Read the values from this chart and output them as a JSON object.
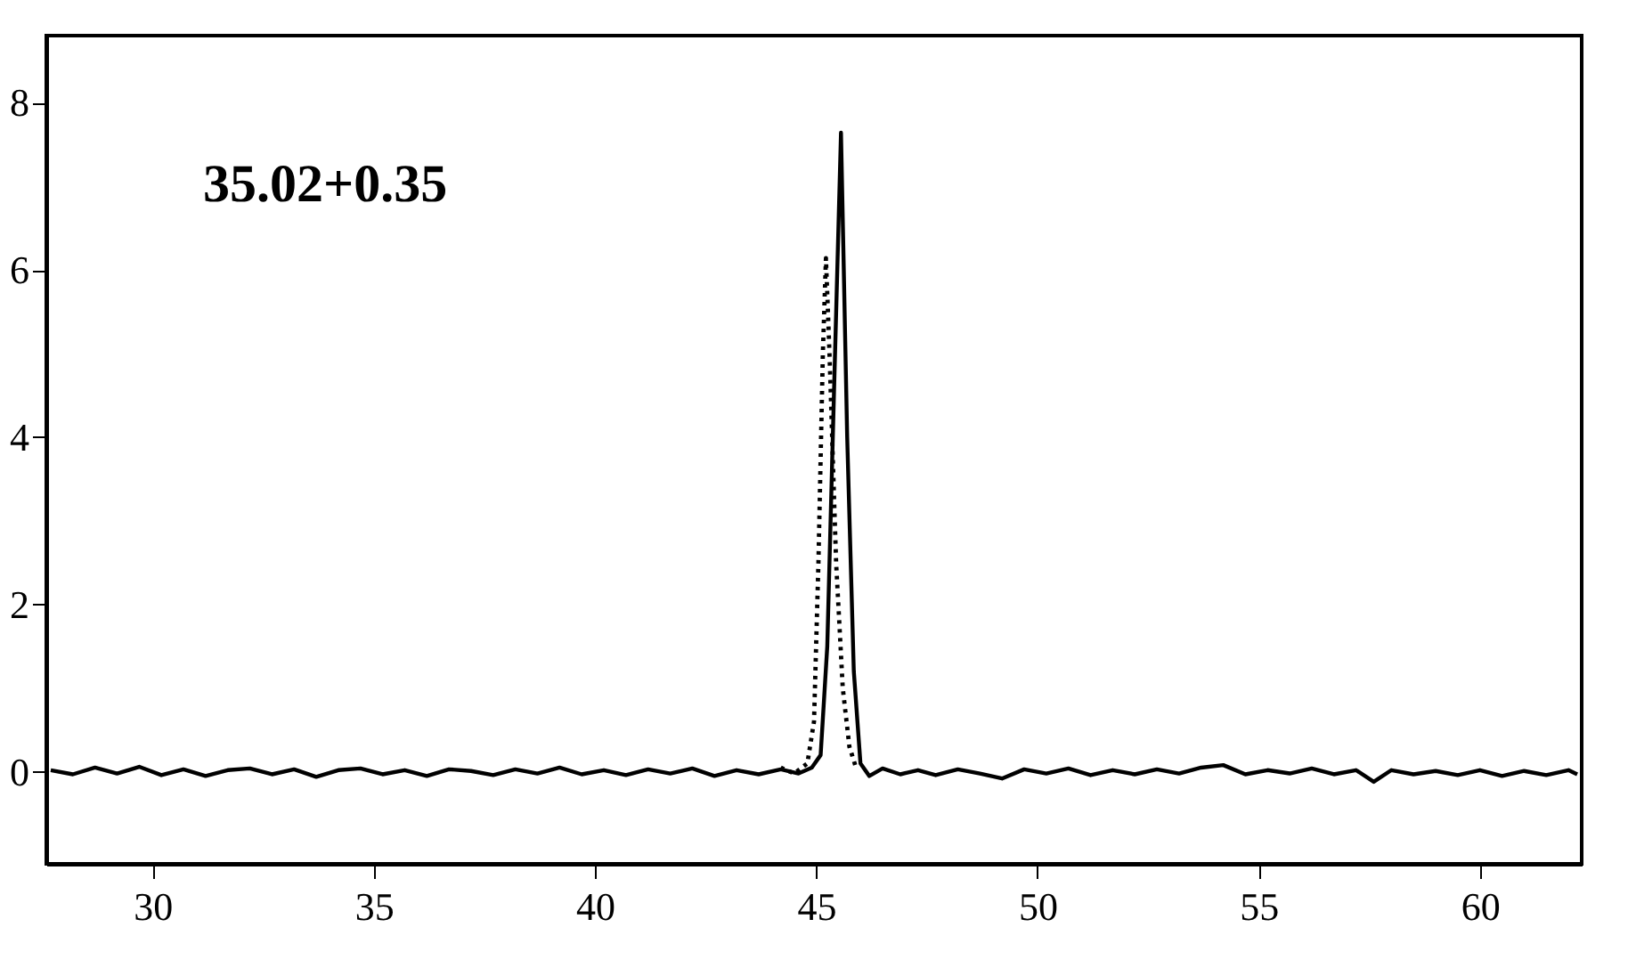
{
  "chart_data": {
    "type": "line",
    "xlim": [
      27.6,
      62.3
    ],
    "ylim": [
      -1.1,
      8.8
    ],
    "xticks": [
      30,
      35,
      40,
      45,
      50,
      55,
      60
    ],
    "yticks": [
      0,
      2,
      4,
      6,
      8
    ],
    "grid": false,
    "marker": "none",
    "annotations": [
      "35.02+0.35"
    ],
    "series": [
      {
        "color": "#000000",
        "line_style": "solid",
        "x": [
          27.7,
          28.2,
          28.7,
          29.2,
          29.7,
          30.2,
          30.7,
          31.2,
          31.7,
          32.2,
          32.7,
          33.2,
          33.7,
          34.2,
          34.7,
          35.2,
          35.7,
          36.2,
          36.7,
          37.2,
          37.7,
          38.2,
          38.7,
          39.2,
          39.7,
          40.2,
          40.7,
          41.2,
          41.7,
          42.2,
          42.7,
          43.2,
          43.7,
          44.2,
          44.6,
          44.9,
          45.1,
          45.25,
          45.4,
          45.56,
          45.7,
          45.85,
          46.0,
          46.2,
          46.5,
          46.9,
          47.3,
          47.7,
          48.2,
          48.7,
          49.2,
          49.7,
          50.2,
          50.7,
          51.2,
          51.7,
          52.2,
          52.7,
          53.2,
          53.7,
          54.2,
          54.7,
          55.2,
          55.7,
          56.2,
          56.7,
          57.2,
          57.6,
          58.0,
          58.5,
          59.0,
          59.5,
          60.0,
          60.5,
          61.0,
          61.5,
          62.0,
          62.2
        ],
        "values": [
          0.02,
          -0.03,
          0.05,
          -0.02,
          0.06,
          -0.04,
          0.03,
          -0.05,
          0.02,
          0.04,
          -0.03,
          0.03,
          -0.06,
          0.02,
          0.04,
          -0.03,
          0.02,
          -0.05,
          0.03,
          0.01,
          -0.04,
          0.03,
          -0.02,
          0.05,
          -0.03,
          0.02,
          -0.04,
          0.03,
          -0.02,
          0.04,
          -0.05,
          0.02,
          -0.03,
          0.03,
          -0.02,
          0.05,
          0.2,
          1.5,
          4.5,
          7.64,
          4.0,
          1.2,
          0.1,
          -0.05,
          0.04,
          -0.03,
          0.02,
          -0.04,
          0.03,
          -0.02,
          -0.08,
          0.03,
          -0.02,
          0.04,
          -0.04,
          0.02,
          -0.03,
          0.03,
          -0.02,
          0.05,
          0.08,
          -0.03,
          0.02,
          -0.02,
          0.04,
          -0.03,
          0.02,
          -0.12,
          0.02,
          -0.03,
          0.01,
          -0.04,
          0.02,
          -0.05,
          0.01,
          -0.04,
          0.02,
          -0.03
        ]
      },
      {
        "color": "#000000",
        "line_style": "dotted",
        "x": [
          44.2,
          44.5,
          44.8,
          44.95,
          45.05,
          45.15,
          45.22,
          45.3,
          45.45,
          45.6,
          45.75,
          45.9
        ],
        "values": [
          0.05,
          -0.02,
          0.1,
          0.6,
          2.5,
          5.0,
          6.14,
          5.0,
          2.5,
          1.0,
          0.3,
          0.05
        ]
      }
    ]
  }
}
